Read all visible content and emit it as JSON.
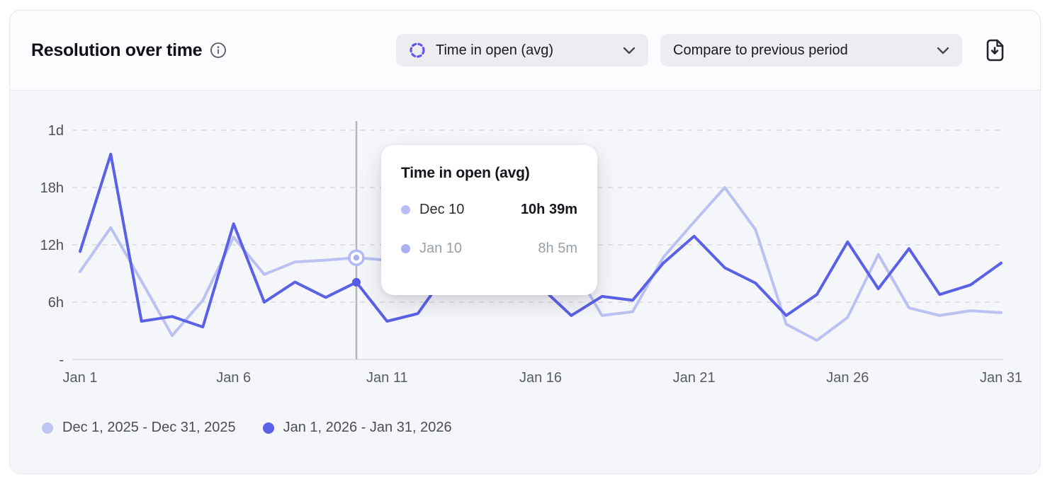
{
  "header": {
    "title": "Resolution over time",
    "metric_select": {
      "value": "Time in open (avg)"
    },
    "compare_select": {
      "value": "Compare to previous period"
    }
  },
  "tooltip": {
    "title": "Time in open (avg)",
    "rows": [
      {
        "label": "Dec 10",
        "value": "10h 39m"
      },
      {
        "label": "Jan 10",
        "value": "8h 5m"
      }
    ]
  },
  "legend": [
    {
      "label": "Dec 1, 2025 - Dec 31, 2025",
      "color": "#c1c5f2"
    },
    {
      "label": "Jan 1, 2026 - Jan 31, 2026",
      "color": "#5b61e6"
    }
  ],
  "colors": {
    "series_previous": "#bcc1f4",
    "series_current": "#5b61e6",
    "hover_line": "#b4b6c0",
    "grid": "#d9dade",
    "axis": "#dcdde2",
    "accent_dashed_circle": "#5f58e8"
  },
  "chart_data": {
    "type": "line",
    "title": "Resolution over time",
    "ylabel": "Time in open (avg), hours",
    "ylim": [
      0,
      24
    ],
    "grid": "dashed-horizontal",
    "legend_position": "bottom-left",
    "y_ticks": [
      {
        "label": "1d",
        "hours": 24
      },
      {
        "label": "18h",
        "hours": 18
      },
      {
        "label": "12h",
        "hours": 12
      },
      {
        "label": "6h",
        "hours": 6
      },
      {
        "label": "-",
        "hours": 0
      }
    ],
    "x_tick_labels": [
      "Jan 1",
      "Jan 6",
      "Jan 11",
      "Jan 16",
      "Jan 21",
      "Jan 26",
      "Jan 31"
    ],
    "x_tick_days": [
      1,
      6,
      11,
      16,
      21,
      26,
      31
    ],
    "days": 31,
    "series": [
      {
        "name": "Dec 1, 2025 - Dec 31, 2025",
        "color": "#bcc1f4",
        "values_hours": [
          9.2,
          13.8,
          8.2,
          2.5,
          6.2,
          12.8,
          8.9,
          10.2,
          10.4,
          10.65,
          10.4,
          9.8,
          9.2,
          8.8,
          9.5,
          10.2,
          10.0,
          4.6,
          5.0,
          10.7,
          14.4,
          18.0,
          13.6,
          3.7,
          2.0,
          4.4,
          11.0,
          5.4,
          4.6,
          5.1,
          4.9
        ]
      },
      {
        "name": "Jan 1, 2026 - Jan 31, 2026",
        "color": "#5b61e6",
        "values_hours": [
          11.3,
          21.5,
          4.0,
          4.5,
          3.4,
          14.2,
          6.0,
          8.1,
          6.5,
          8.08,
          4.0,
          4.8,
          9.3,
          11.5,
          9.0,
          7.6,
          4.6,
          6.6,
          6.2,
          10.1,
          12.9,
          9.6,
          8.0,
          4.6,
          6.8,
          12.3,
          7.4,
          11.6,
          6.8,
          7.8,
          10.1
        ]
      }
    ],
    "hover": {
      "day_index": 9,
      "previous_label": "Dec 10",
      "previous_value": "10h 39m",
      "current_label": "Jan 10",
      "current_value": "8h 5m"
    }
  }
}
